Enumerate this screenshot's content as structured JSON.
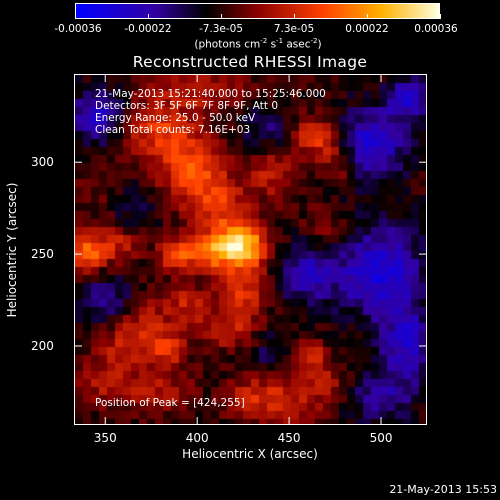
{
  "colorbar": {
    "tick_labels": [
      "-0.00036",
      "-0.00022",
      "-7.3e-05",
      "7.3e-05",
      "0.00022",
      "0.00036"
    ],
    "unit_parts": [
      "(photons cm",
      "-2",
      " s",
      "-1",
      " asec",
      "-2",
      ")"
    ]
  },
  "title": "Reconstructed RHESSI Image",
  "annotations": {
    "time_range": "21-May-2013 15:21:40.000 to 15:25:46.000",
    "detectors": "Detectors: 3F 5F 6F 7F 8F 9F, Att 0",
    "energy_range": "Energy Range: 25.0 - 50.0 keV",
    "clean_counts": "Clean     Total counts: 7.16E+03",
    "peak_position": "Position of Peak = [424,255]"
  },
  "chart_data": {
    "type": "heatmap",
    "title": "Reconstructed RHESSI Image",
    "xlabel": "Heliocentric X (arcsec)",
    "ylabel": "Heliocentric Y (arcsec)",
    "xlim": [
      333,
      525
    ],
    "ylim": [
      157,
      348
    ],
    "x_ticks": [
      "350",
      "400",
      "450",
      "500"
    ],
    "y_ticks": [
      "200",
      "250",
      "300"
    ],
    "colorbar_range": [
      -0.00036,
      0.00036
    ],
    "colormap": [
      "#0000ff",
      "#3300a0",
      "#000000",
      "#8a0000",
      "#ff4000",
      "#ffb000",
      "#ffffe0"
    ],
    "peak": [
      424,
      255
    ],
    "sources": [
      {
        "x": 424,
        "y": 255,
        "value": 0.00036,
        "sx": 10,
        "sy": 9
      },
      {
        "x": 405,
        "y": 251,
        "value": 0.0002,
        "sx": 9,
        "sy": 7
      },
      {
        "x": 388,
        "y": 250,
        "value": 0.00018,
        "sx": 7,
        "sy": 6
      },
      {
        "x": 340,
        "y": 251,
        "value": 0.00024,
        "sx": 7,
        "sy": 8
      },
      {
        "x": 357,
        "y": 255,
        "value": 0.00012,
        "sx": 8,
        "sy": 8
      },
      {
        "x": 410,
        "y": 278,
        "value": 0.00016,
        "sx": 12,
        "sy": 12
      },
      {
        "x": 395,
        "y": 298,
        "value": 0.00018,
        "sx": 12,
        "sy": 12
      },
      {
        "x": 378,
        "y": 318,
        "value": 0.00016,
        "sx": 14,
        "sy": 10
      },
      {
        "x": 425,
        "y": 228,
        "value": 0.00016,
        "sx": 9,
        "sy": 11
      },
      {
        "x": 396,
        "y": 222,
        "value": 0.00012,
        "sx": 9,
        "sy": 8
      },
      {
        "x": 415,
        "y": 208,
        "value": 0.00012,
        "sx": 9,
        "sy": 7
      },
      {
        "x": 372,
        "y": 212,
        "value": 0.00011,
        "sx": 12,
        "sy": 10
      },
      {
        "x": 358,
        "y": 200,
        "value": 0.0001,
        "sx": 10,
        "sy": 9
      },
      {
        "x": 383,
        "y": 198,
        "value": 0.00016,
        "sx": 8,
        "sy": 6
      },
      {
        "x": 440,
        "y": 295,
        "value": 0.00012,
        "sx": 9,
        "sy": 10
      },
      {
        "x": 460,
        "y": 315,
        "value": 0.00013,
        "sx": 10,
        "sy": 8
      },
      {
        "x": 470,
        "y": 310,
        "value": 0.0001,
        "sx": 6,
        "sy": 10
      },
      {
        "x": 480,
        "y": 300,
        "value": 0.00011,
        "sx": 6,
        "sy": 8
      },
      {
        "x": 462,
        "y": 195,
        "value": 0.00016,
        "sx": 5,
        "sy": 5
      },
      {
        "x": 470,
        "y": 180,
        "value": 0.0001,
        "sx": 8,
        "sy": 8
      },
      {
        "x": 450,
        "y": 170,
        "value": 0.00012,
        "sx": 12,
        "sy": 10
      },
      {
        "x": 430,
        "y": 172,
        "value": 0.00012,
        "sx": 10,
        "sy": 8
      },
      {
        "x": 380,
        "y": 175,
        "value": 0.0001,
        "sx": 12,
        "sy": 9
      },
      {
        "x": 350,
        "y": 178,
        "value": 0.0001,
        "sx": 12,
        "sy": 9
      },
      {
        "x": 400,
        "y": 340,
        "value": 0.00012,
        "sx": 18,
        "sy": 8
      },
      {
        "x": 470,
        "y": 262,
        "value": 8e-05,
        "sx": 9,
        "sy": 9
      },
      {
        "x": 345,
        "y": 285,
        "value": 4e-05,
        "sx": 12,
        "sy": 12
      },
      {
        "x": 495,
        "y": 310,
        "value": -0.0002,
        "sx": 14,
        "sy": 14
      },
      {
        "x": 500,
        "y": 240,
        "value": -0.00022,
        "sx": 16,
        "sy": 18
      },
      {
        "x": 460,
        "y": 240,
        "value": -0.00016,
        "sx": 12,
        "sy": 12
      },
      {
        "x": 440,
        "y": 318,
        "value": -0.00012,
        "sx": 10,
        "sy": 9
      },
      {
        "x": 345,
        "y": 325,
        "value": -0.0002,
        "sx": 10,
        "sy": 10
      },
      {
        "x": 350,
        "y": 225,
        "value": -0.00014,
        "sx": 10,
        "sy": 10
      },
      {
        "x": 365,
        "y": 275,
        "value": -8e-05,
        "sx": 9,
        "sy": 9
      },
      {
        "x": 515,
        "y": 200,
        "value": -0.00018,
        "sx": 10,
        "sy": 14
      },
      {
        "x": 500,
        "y": 172,
        "value": -0.00014,
        "sx": 12,
        "sy": 10
      },
      {
        "x": 515,
        "y": 335,
        "value": -0.00018,
        "sx": 8,
        "sy": 8
      },
      {
        "x": 440,
        "y": 195,
        "value": -8e-05,
        "sx": 6,
        "sy": 8
      }
    ]
  },
  "timestamp": "21-May-2013 15:53"
}
